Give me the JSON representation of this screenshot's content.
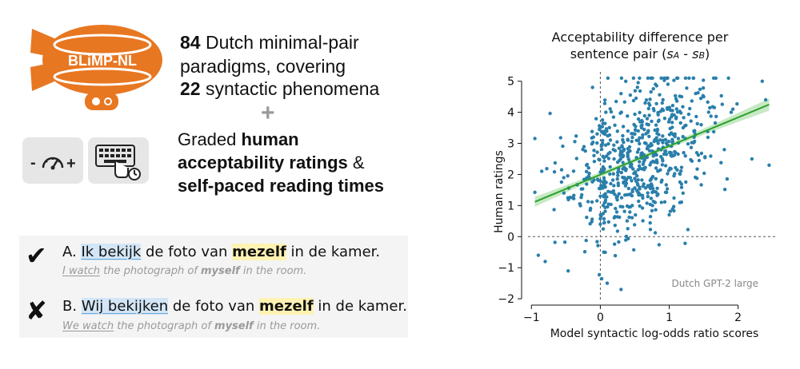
{
  "logo": {
    "text": "BLiMP-NL",
    "accent": "#e87722"
  },
  "headline": {
    "line1_num": "84",
    "line1_rest": " Dutch minimal-pair",
    "line2": "paradigms, covering",
    "line3_num": "22",
    "line3_rest": " syntactic phenomena",
    "plus": "+"
  },
  "rating_icon": {
    "minus": "-",
    "plus": "+"
  },
  "graded": {
    "line1_pre": "Graded ",
    "line1_bold": "human",
    "line2_bold": "acceptability ratings",
    "line2_rest": " &",
    "line3_bold": "self-paced reading times"
  },
  "example": {
    "a": {
      "mark": "✔",
      "prefix": "A. ",
      "highlight": "Ik bekijk",
      "mid": " de foto van ",
      "reflexive": "mezelf",
      "end": " in de kamer.",
      "t_highlight": "I watch",
      "t_mid": " the photograph of ",
      "t_reflexive": "myself",
      "t_end": " in the room."
    },
    "b": {
      "mark": "✘",
      "prefix": "B. ",
      "highlight": "Wij bekijken",
      "mid": " de foto van ",
      "reflexive": "mezelf",
      "end": " in de kamer.",
      "t_highlight": "We watch",
      "t_mid": " the photograph of ",
      "t_reflexive": "myself",
      "t_end": " in the room."
    }
  },
  "chart_data": {
    "type": "scatter",
    "title_line1": "Acceptability difference per",
    "title_line2_pre": "sentence pair (",
    "title_sA": "s",
    "title_sA_sub": "A",
    "title_mid": " - ",
    "title_sB": "s",
    "title_sB_sub": "B",
    "title_line2_post": ")",
    "xlabel": "Model syntactic log-odds ratio scores",
    "ylabel": "Human ratings",
    "annotation": "Dutch GPT-2 large",
    "xlim": [
      -1.05,
      2.55
    ],
    "ylim": [
      -2.1,
      5.3
    ],
    "xticks": [
      -1,
      0,
      1,
      2
    ],
    "yticks": [
      -2,
      -1,
      0,
      1,
      2,
      3,
      4,
      5
    ],
    "point_color": "#2a7fab",
    "line_color": "#2ca02c",
    "band_color": "#b9e3b5",
    "regression": {
      "x0": -0.95,
      "y0": 1.12,
      "x1": 2.45,
      "y1": 4.25
    },
    "band_half_width": {
      "at_ends": 0.2,
      "at_center": 0.07,
      "center_x": 0.6
    },
    "reference_lines": {
      "x": 0,
      "y": 0
    },
    "n_points": 700,
    "points_sample": [
      [
        0.5,
        3.3
      ],
      [
        0.6,
        3.5
      ],
      [
        0.4,
        3.1
      ],
      [
        0.7,
        3.6
      ],
      [
        0.55,
        3.4
      ],
      [
        -0.9,
        -0.6
      ],
      [
        -0.8,
        -0.8
      ],
      [
        -0.85,
        2.1
      ],
      [
        0.0,
        1.3
      ],
      [
        0.0,
        0.4
      ],
      [
        0.05,
        -0.5
      ],
      [
        0.1,
        -1.5
      ],
      [
        0.3,
        -1.7
      ],
      [
        0.9,
        4.1
      ],
      [
        1.1,
        3.8
      ],
      [
        1.5,
        4.5
      ],
      [
        2.4,
        4.4
      ],
      [
        2.45,
        2.3
      ],
      [
        2.2,
        2.5
      ],
      [
        2.35,
        5.0
      ],
      [
        1.0,
        0.7
      ],
      [
        1.2,
        1.4
      ],
      [
        1.4,
        2.7
      ],
      [
        0.2,
        2.5
      ],
      [
        -0.1,
        3.2
      ],
      [
        -0.2,
        2.3
      ],
      [
        0.8,
        4.9
      ],
      [
        0.3,
        4.6
      ],
      [
        1.8,
        2.8
      ],
      [
        1.9,
        4.0
      ]
    ]
  }
}
